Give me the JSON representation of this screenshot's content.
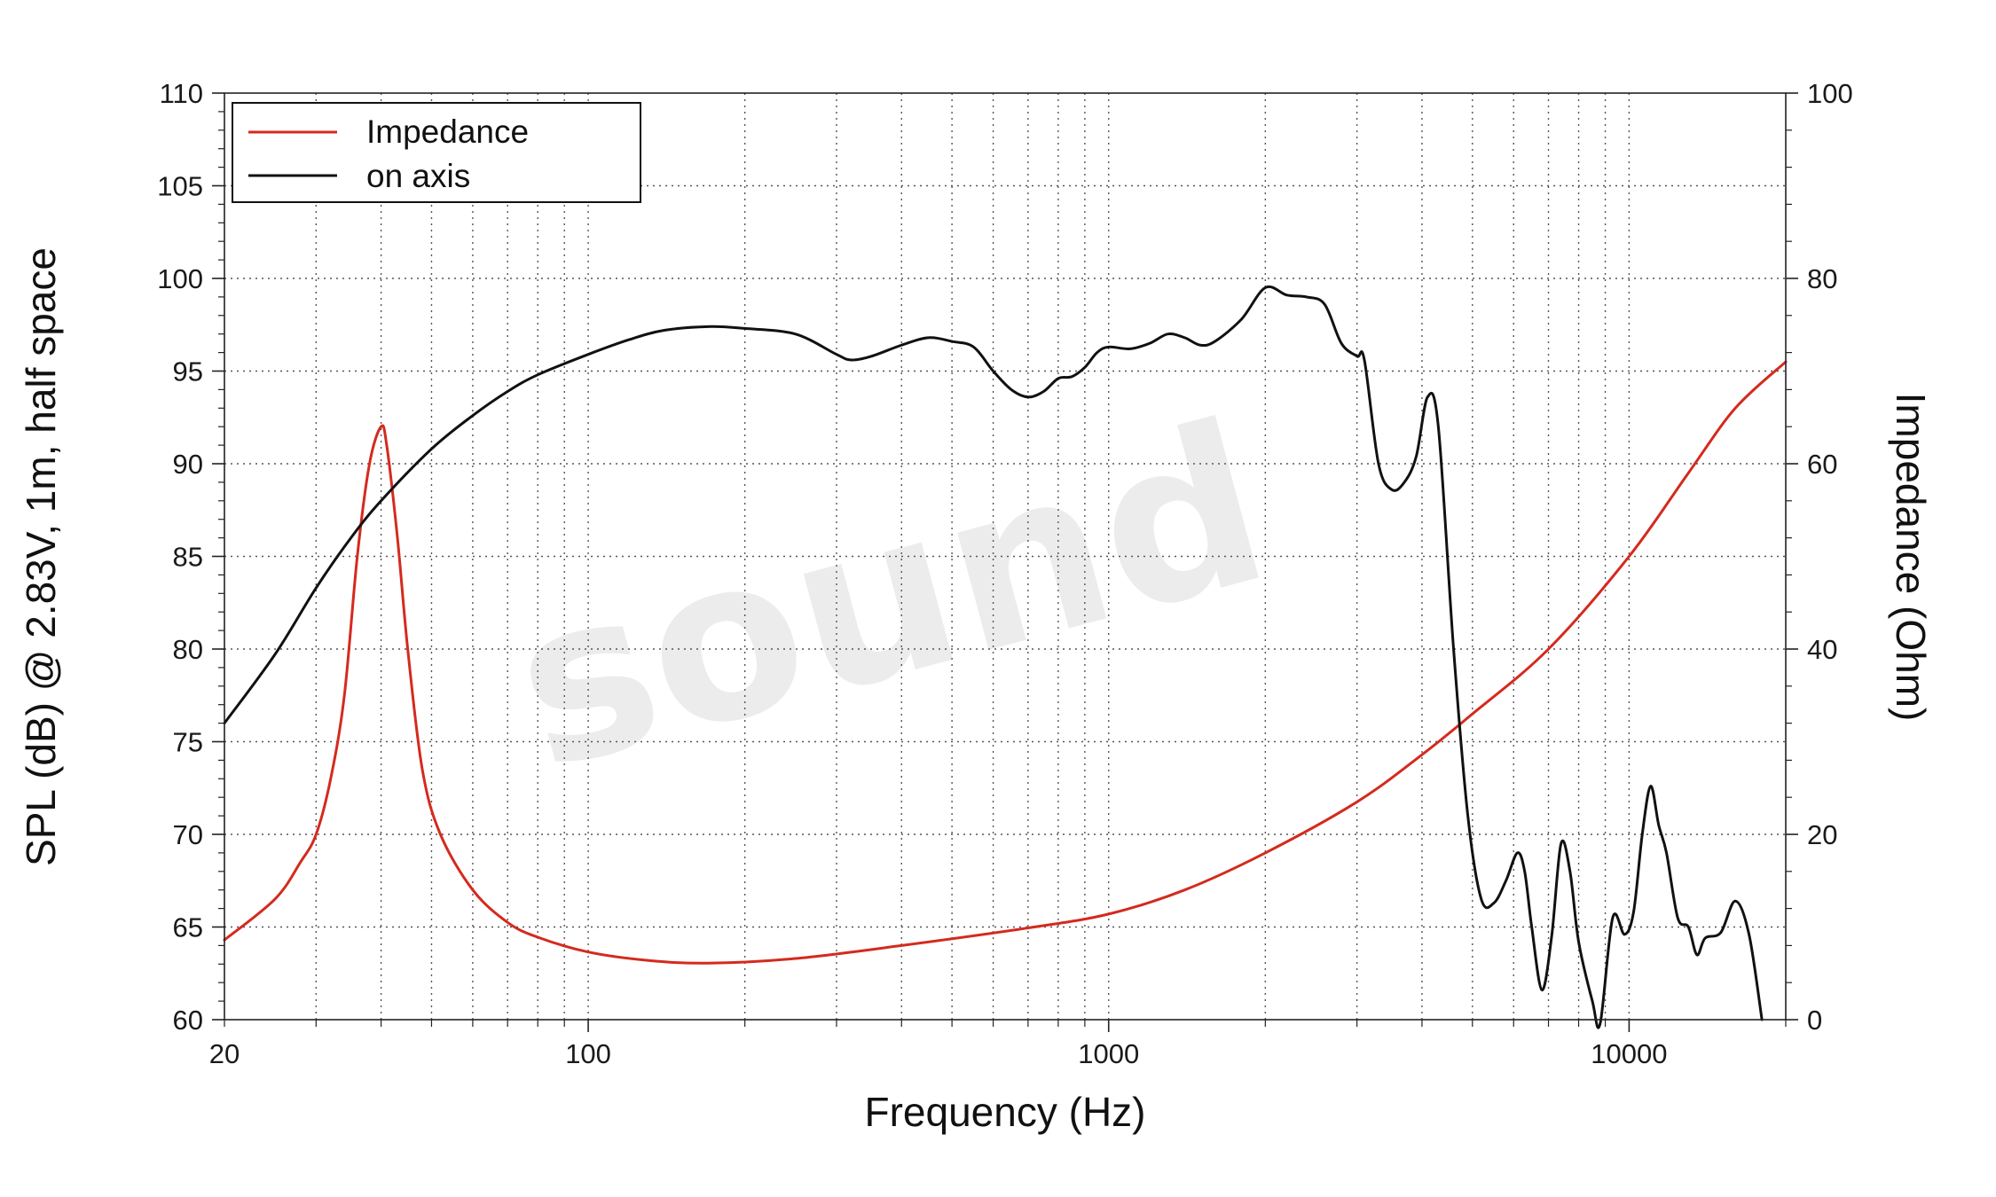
{
  "chart_data": {
    "type": "line",
    "x_label": "Frequency (Hz)",
    "y_label_left": "SPL (dB) @ 2.83V, 1m, half space",
    "y_label_right": "Impedance (Ohm)",
    "x_scale": "log",
    "x_range": [
      20,
      20000
    ],
    "x_ticks": [
      "20",
      "100",
      "1000",
      "10000"
    ],
    "y_left_range": [
      60,
      110
    ],
    "y_left_ticks": [
      "60",
      "65",
      "70",
      "75",
      "80",
      "85",
      "90",
      "95",
      "100",
      "105",
      "110"
    ],
    "y_right_range": [
      0,
      100
    ],
    "y_right_ticks": [
      "0",
      "20",
      "40",
      "60",
      "80",
      "100"
    ],
    "grid": true,
    "legend_position": "top-left",
    "watermark": "sound",
    "series": [
      {
        "name": "Impedance",
        "axis": "right",
        "color": "#d42a1e",
        "points": [
          [
            20,
            8.6
          ],
          [
            25,
            13.0
          ],
          [
            28,
            17.0
          ],
          [
            30,
            20.0
          ],
          [
            32,
            26.0
          ],
          [
            34,
            35.0
          ],
          [
            36,
            50.0
          ],
          [
            38,
            60.0
          ],
          [
            40,
            64.0
          ],
          [
            41,
            62.0
          ],
          [
            43,
            52.0
          ],
          [
            45,
            40.0
          ],
          [
            48,
            27.0
          ],
          [
            52,
            20.0
          ],
          [
            60,
            14.0
          ],
          [
            70,
            10.5
          ],
          [
            80,
            8.9
          ],
          [
            100,
            7.3
          ],
          [
            130,
            6.4
          ],
          [
            170,
            6.1
          ],
          [
            250,
            6.6
          ],
          [
            400,
            8.0
          ],
          [
            700,
            9.9
          ],
          [
            1000,
            11.4
          ],
          [
            1400,
            14.0
          ],
          [
            2000,
            18.0
          ],
          [
            3000,
            23.5
          ],
          [
            4000,
            28.6
          ],
          [
            5000,
            33.0
          ],
          [
            7000,
            40.0
          ],
          [
            10000,
            50.0
          ],
          [
            13000,
            59.0
          ],
          [
            16000,
            66.0
          ],
          [
            20000,
            71.0
          ]
        ]
      },
      {
        "name": "on axis",
        "axis": "left",
        "color": "#111111",
        "points": [
          [
            20,
            76.0
          ],
          [
            25,
            79.7
          ],
          [
            30,
            83.3
          ],
          [
            35,
            86.0
          ],
          [
            40,
            88.0
          ],
          [
            50,
            90.8
          ],
          [
            60,
            92.6
          ],
          [
            70,
            93.9
          ],
          [
            80,
            94.8
          ],
          [
            100,
            95.9
          ],
          [
            120,
            96.7
          ],
          [
            140,
            97.2
          ],
          [
            170,
            97.4
          ],
          [
            200,
            97.3
          ],
          [
            250,
            97.0
          ],
          [
            300,
            95.9
          ],
          [
            320,
            95.6
          ],
          [
            350,
            95.8
          ],
          [
            400,
            96.4
          ],
          [
            450,
            96.8
          ],
          [
            500,
            96.6
          ],
          [
            550,
            96.3
          ],
          [
            600,
            95.0
          ],
          [
            650,
            94.0
          ],
          [
            700,
            93.6
          ],
          [
            750,
            93.9
          ],
          [
            800,
            94.6
          ],
          [
            850,
            94.7
          ],
          [
            900,
            95.2
          ],
          [
            950,
            96.0
          ],
          [
            1000,
            96.3
          ],
          [
            1100,
            96.2
          ],
          [
            1200,
            96.5
          ],
          [
            1300,
            97.0
          ],
          [
            1400,
            96.8
          ],
          [
            1500,
            96.4
          ],
          [
            1600,
            96.6
          ],
          [
            1800,
            97.8
          ],
          [
            2000,
            99.5
          ],
          [
            2200,
            99.1
          ],
          [
            2400,
            99.0
          ],
          [
            2600,
            98.6
          ],
          [
            2800,
            96.5
          ],
          [
            3000,
            95.8
          ],
          [
            3100,
            95.6
          ],
          [
            3300,
            90.0
          ],
          [
            3500,
            88.6
          ],
          [
            3700,
            89.0
          ],
          [
            3900,
            90.4
          ],
          [
            4100,
            93.6
          ],
          [
            4300,
            92.0
          ],
          [
            4600,
            80.0
          ],
          [
            4900,
            71.0
          ],
          [
            5200,
            66.5
          ],
          [
            5500,
            66.3
          ],
          [
            5800,
            67.5
          ],
          [
            6100,
            69.0
          ],
          [
            6300,
            68.0
          ],
          [
            6500,
            65.0
          ],
          [
            6800,
            61.6
          ],
          [
            7100,
            64.5
          ],
          [
            7400,
            69.5
          ],
          [
            7700,
            68.0
          ],
          [
            8000,
            64.2
          ],
          [
            8500,
            61.0
          ],
          [
            8800,
            59.8
          ],
          [
            9300,
            65.5
          ],
          [
            9800,
            64.6
          ],
          [
            10200,
            65.8
          ],
          [
            10600,
            70.0
          ],
          [
            11000,
            72.6
          ],
          [
            11400,
            70.5
          ],
          [
            11800,
            69.0
          ],
          [
            12400,
            65.5
          ],
          [
            13000,
            65.0
          ],
          [
            13500,
            63.5
          ],
          [
            14000,
            64.4
          ],
          [
            15000,
            64.7
          ],
          [
            16000,
            66.4
          ],
          [
            17000,
            64.6
          ],
          [
            18000,
            60.0
          ]
        ]
      }
    ]
  }
}
